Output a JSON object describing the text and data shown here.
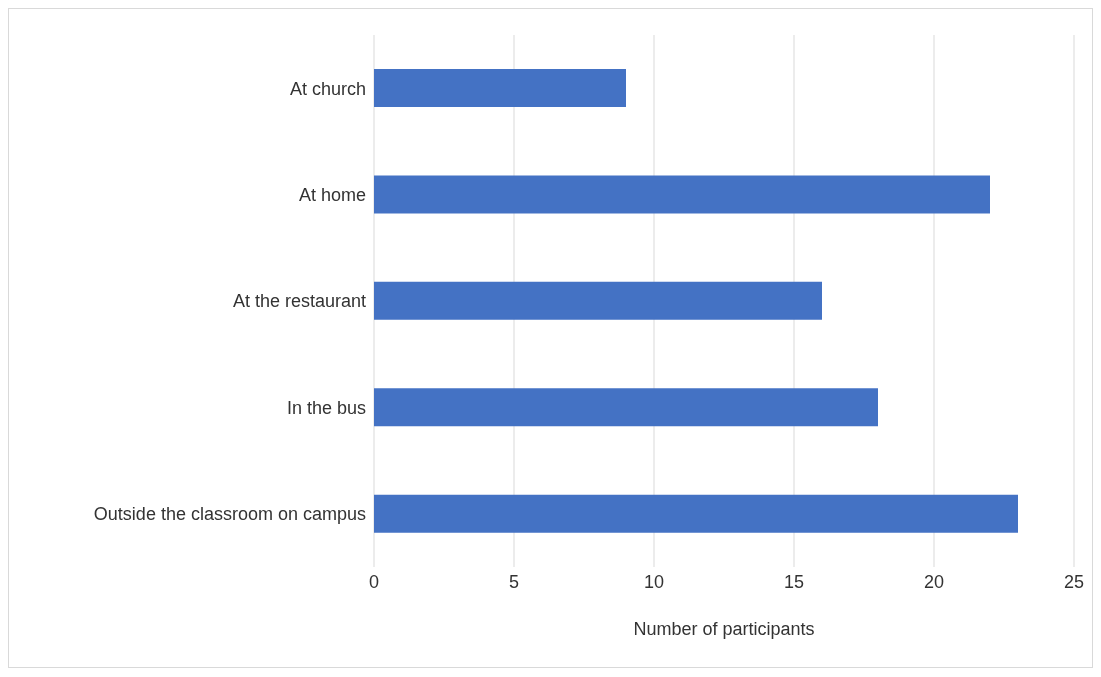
{
  "chart_data": {
    "type": "bar",
    "orientation": "horizontal",
    "xlabel": "Number of participants",
    "categories": [
      "At church",
      "At home",
      "At the restaurant",
      "In the bus",
      "Outside the classroom on campus"
    ],
    "values": [
      9,
      22,
      16,
      18,
      23
    ],
    "color": "#4472c4",
    "xlim": [
      0,
      25
    ],
    "xticks": [
      0,
      5,
      10,
      15,
      20,
      25
    ],
    "grid": "x",
    "legend": false
  }
}
